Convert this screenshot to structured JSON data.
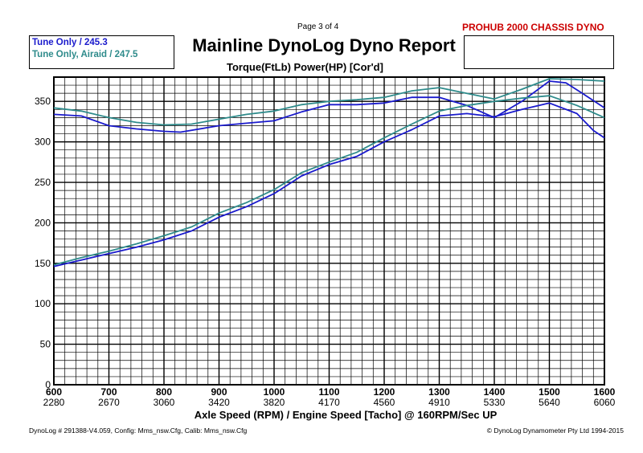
{
  "header": {
    "page_label": "Page 3 of 4",
    "brand": "PROHUB 2000 CHASSIS DYNO",
    "title": "Mainline DynoLog Dyno Report",
    "subtitle": "Torque(FtLb) Power(HP) [Cor'd]"
  },
  "legend": {
    "entries": [
      {
        "label": "Tune Only / 245.3",
        "color": "#1a1acc"
      },
      {
        "label": "Tune Only, Airaid / 247.5",
        "color": "#2e8b8b"
      }
    ]
  },
  "footer": {
    "left": "DynoLog # 291388-V4.059, Config: Mms_nsw.Cfg, Calib: Mms_nsw.Cfg",
    "right": "© DynoLog Dynamometer Pty Ltd 1994-2015"
  },
  "colors": {
    "grid": "#000000",
    "series_blue": "#1a1acc",
    "series_teal": "#2e8b8b",
    "brand": "#cc0000"
  },
  "chart_data": {
    "type": "line",
    "xlabel": "Axle Speed (RPM) / Engine Speed [Tacho] @ 160RPM/Sec UP",
    "ylabel": "",
    "xlim": [
      600,
      1600
    ],
    "ylim": [
      0,
      380
    ],
    "x_ticks": [
      600,
      700,
      800,
      900,
      1000,
      1100,
      1200,
      1300,
      1400,
      1500,
      1600
    ],
    "x_secondary_ticks": [
      "2280",
      "2670",
      "3060",
      "3420",
      "3820",
      "4170",
      "4560",
      "4910",
      "5330",
      "5640",
      "6060"
    ],
    "y_ticks": [
      0,
      50,
      100,
      150,
      200,
      250,
      300,
      350
    ],
    "grid": true,
    "series": [
      {
        "name": "Tune Only / 245.3",
        "metric": "torque",
        "color": "#1a1acc",
        "points": [
          [
            600,
            334
          ],
          [
            650,
            332
          ],
          [
            700,
            320
          ],
          [
            750,
            316
          ],
          [
            800,
            313
          ],
          [
            830,
            312
          ],
          [
            900,
            320
          ],
          [
            950,
            323
          ],
          [
            1000,
            326
          ],
          [
            1050,
            337
          ],
          [
            1100,
            346
          ],
          [
            1150,
            346
          ],
          [
            1200,
            348
          ],
          [
            1250,
            355
          ],
          [
            1300,
            355
          ],
          [
            1350,
            345
          ],
          [
            1400,
            330
          ],
          [
            1450,
            350
          ],
          [
            1500,
            375
          ],
          [
            1530,
            373
          ],
          [
            1560,
            360
          ],
          [
            1600,
            342
          ]
        ]
      },
      {
        "name": "Tune Only, Airaid / 247.5",
        "metric": "torque",
        "color": "#2e8b8b",
        "points": [
          [
            600,
            342
          ],
          [
            650,
            338
          ],
          [
            700,
            330
          ],
          [
            750,
            324
          ],
          [
            800,
            321
          ],
          [
            850,
            322
          ],
          [
            900,
            328
          ],
          [
            950,
            334
          ],
          [
            1000,
            338
          ],
          [
            1050,
            346
          ],
          [
            1100,
            350
          ],
          [
            1150,
            352
          ],
          [
            1200,
            355
          ],
          [
            1250,
            363
          ],
          [
            1300,
            367
          ],
          [
            1350,
            360
          ],
          [
            1400,
            353
          ],
          [
            1450,
            365
          ],
          [
            1500,
            378
          ],
          [
            1550,
            377
          ],
          [
            1600,
            375
          ]
        ]
      },
      {
        "name": "Tune Only / 245.3",
        "metric": "power",
        "color": "#1a1acc",
        "points": [
          [
            600,
            146
          ],
          [
            650,
            154
          ],
          [
            700,
            162
          ],
          [
            750,
            170
          ],
          [
            800,
            179
          ],
          [
            850,
            190
          ],
          [
            900,
            207
          ],
          [
            950,
            220
          ],
          [
            1000,
            236
          ],
          [
            1050,
            258
          ],
          [
            1100,
            272
          ],
          [
            1150,
            282
          ],
          [
            1200,
            300
          ],
          [
            1250,
            315
          ],
          [
            1300,
            332
          ],
          [
            1350,
            335
          ],
          [
            1400,
            331
          ],
          [
            1450,
            340
          ],
          [
            1500,
            348
          ],
          [
            1550,
            335
          ],
          [
            1580,
            314
          ],
          [
            1600,
            305
          ]
        ]
      },
      {
        "name": "Tune Only, Airaid / 247.5",
        "metric": "power",
        "color": "#2e8b8b",
        "points": [
          [
            600,
            148
          ],
          [
            650,
            157
          ],
          [
            700,
            165
          ],
          [
            750,
            174
          ],
          [
            800,
            184
          ],
          [
            850,
            195
          ],
          [
            900,
            212
          ],
          [
            950,
            225
          ],
          [
            1000,
            241
          ],
          [
            1050,
            262
          ],
          [
            1100,
            275
          ],
          [
            1150,
            287
          ],
          [
            1200,
            305
          ],
          [
            1250,
            322
          ],
          [
            1300,
            338
          ],
          [
            1350,
            345
          ],
          [
            1400,
            350
          ],
          [
            1450,
            354
          ],
          [
            1500,
            357
          ],
          [
            1550,
            345
          ],
          [
            1600,
            330
          ]
        ]
      }
    ]
  }
}
